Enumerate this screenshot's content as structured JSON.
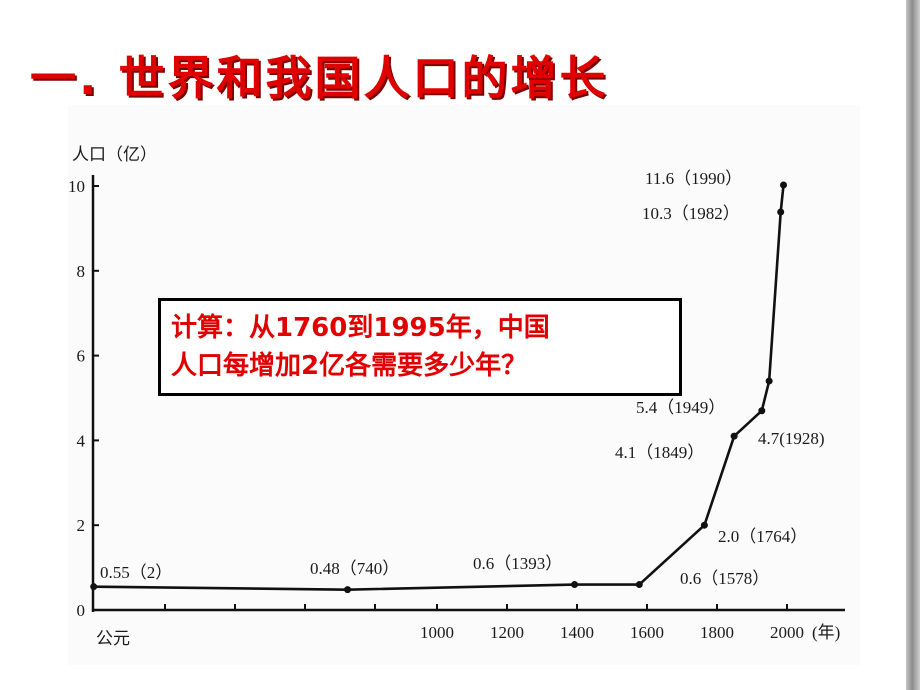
{
  "slide": {
    "title": "一. 世界和我国人口的增长",
    "callout_line1": "计算：从1760到1995年，中国",
    "callout_line2": "人口每增加2亿各需要多少年？",
    "title_color": "#e00000"
  },
  "chart_data": {
    "type": "line",
    "ylabel": "人口（亿）",
    "xlabel": "(年)",
    "origin_label": "公元",
    "ylim": [
      0,
      10
    ],
    "yticks": [
      0,
      2,
      4,
      6,
      8,
      10
    ],
    "xticks": [
      1000,
      1200,
      1400,
      1600,
      1800,
      2000
    ],
    "grid": false,
    "series": [
      {
        "values": [
          {
            "x": 2,
            "y": 0.55
          },
          {
            "x": 740,
            "y": 0.48
          },
          {
            "x": 1393,
            "y": 0.6
          },
          {
            "x": 1578,
            "y": 0.6
          },
          {
            "x": 1764,
            "y": 2.0
          },
          {
            "x": 1849,
            "y": 4.1
          },
          {
            "x": 1928,
            "y": 4.7
          },
          {
            "x": 1949,
            "y": 5.4
          },
          {
            "x": 1982,
            "y": 10.3
          },
          {
            "x": 1990,
            "y": 11.6
          }
        ]
      }
    ],
    "point_labels": [
      "0.55（2）",
      "0.48（740）",
      "0.6（1393）",
      "0.6（1578）",
      "2.0（1764）",
      "4.1（1849）",
      "4.7(1928)",
      "5.4（1949）",
      "10.3（1982）",
      "11.6（1990）"
    ]
  }
}
